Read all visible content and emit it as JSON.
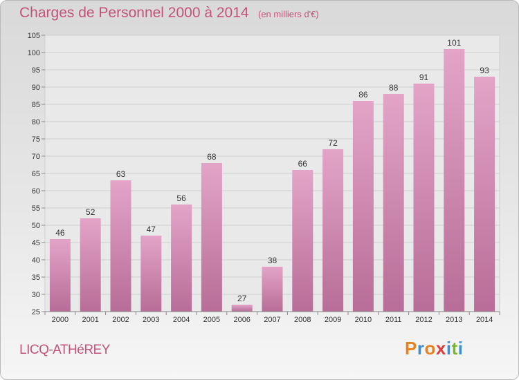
{
  "chart_data": {
    "type": "bar",
    "title": "Charges de Personnel 2000 à 2014",
    "subtitle": "(en milliers d'€)",
    "categories": [
      "2000",
      "2001",
      "2002",
      "2003",
      "2004",
      "2005",
      "2006",
      "2007",
      "2008",
      "2009",
      "2010",
      "2011",
      "2012",
      "2013",
      "2014"
    ],
    "values": [
      46,
      52,
      63,
      47,
      56,
      68,
      27,
      38,
      66,
      72,
      86,
      88,
      91,
      101,
      93
    ],
    "ylim": [
      25,
      105
    ],
    "yticks": [
      25,
      30,
      35,
      40,
      45,
      50,
      55,
      60,
      65,
      70,
      75,
      80,
      85,
      90,
      95,
      100,
      105
    ],
    "grid": true,
    "xlabel": "",
    "ylabel": "",
    "colors": {
      "bar_top": "#e3a4c8",
      "bar_bottom": "#b76d97",
      "text": "#c2537a"
    }
  },
  "footer": {
    "place": "LICQ-ATHéREY",
    "logo": "Proxiti"
  },
  "logo_colors": [
    "#e8811e",
    "#3a8fd6",
    "#e8811e",
    "#e03a3a",
    "#3a8fd6",
    "#77b82a",
    "#3a8fd6"
  ]
}
